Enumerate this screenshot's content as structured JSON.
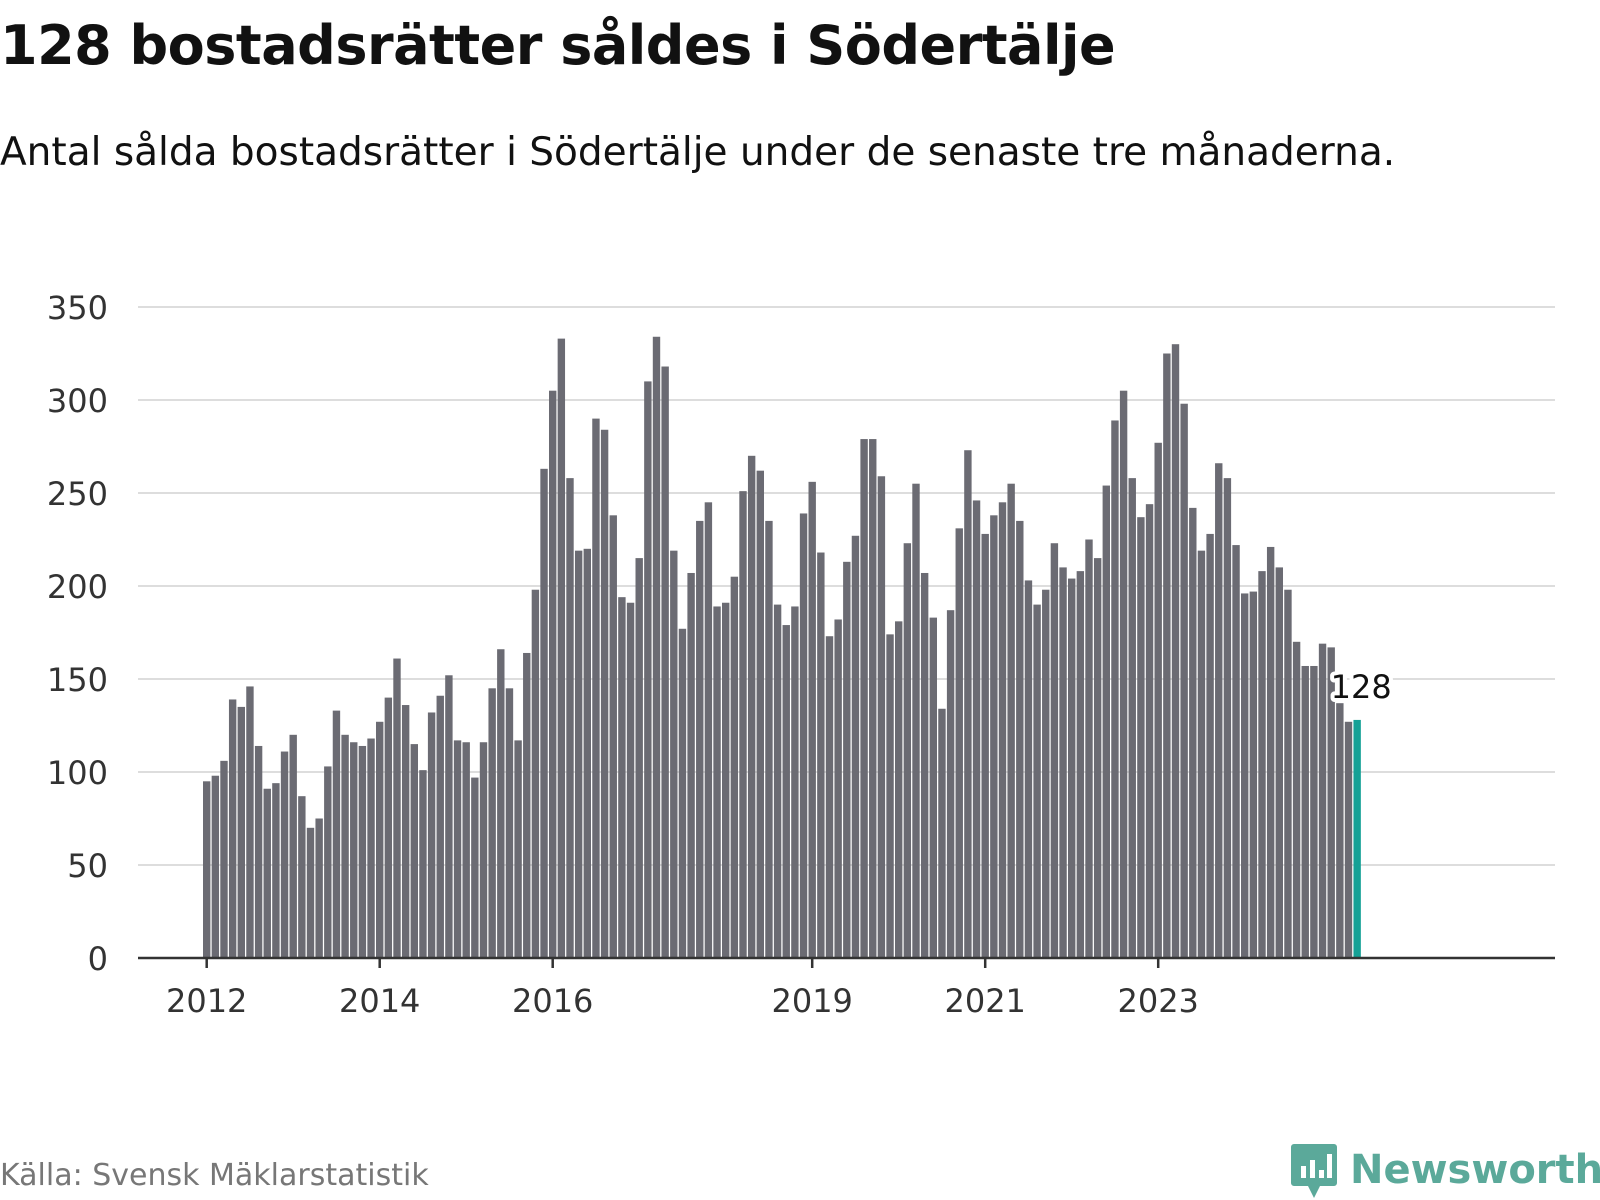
{
  "title": "128 bostadsrätter såldes i Södertälje",
  "subtitle": "Antal sålda bostadsrätter i Södertälje under de senaste tre månaderna.",
  "source": "Källa: Svensk Mäklarstatistik",
  "brand": {
    "name": "Newsworthy",
    "icon": "newsworthy-logo-icon"
  },
  "colors": {
    "bar": "#6b6b73",
    "highlight": "#15a196",
    "grid": "#dddddd",
    "axis": "#333333",
    "brand": "#5ba99a"
  },
  "chart_data": {
    "type": "bar",
    "title": "128 bostadsrätter såldes i Södertälje",
    "subtitle": "Antal sålda bostadsrätter i Södertälje under de senaste tre månaderna.",
    "xlabel": "",
    "ylabel": "",
    "ylim": [
      0,
      350
    ],
    "yticks": [
      0,
      50,
      100,
      150,
      200,
      250,
      300,
      350
    ],
    "xtick_labels": [
      {
        "label": "2012",
        "index": 0
      },
      {
        "label": "2014",
        "index": 20
      },
      {
        "label": "2016",
        "index": 40
      },
      {
        "label": "2019",
        "index": 70
      },
      {
        "label": "2021",
        "index": 90
      },
      {
        "label": "2023",
        "index": 110
      }
    ],
    "grid": true,
    "values": [
      95,
      98,
      106,
      139,
      135,
      146,
      114,
      91,
      94,
      111,
      120,
      87,
      70,
      75,
      103,
      133,
      120,
      116,
      114,
      118,
      127,
      140,
      161,
      136,
      115,
      101,
      132,
      141,
      152,
      117,
      116,
      97,
      116,
      145,
      166,
      145,
      117,
      164,
      198,
      263,
      305,
      333,
      258,
      219,
      220,
      290,
      284,
      238,
      194,
      191,
      215,
      310,
      334,
      318,
      219,
      177,
      207,
      235,
      245,
      189,
      191,
      205,
      251,
      270,
      262,
      235,
      190,
      179,
      189,
      239,
      256,
      218,
      173,
      182,
      213,
      227,
      279,
      279,
      259,
      174,
      181,
      223,
      255,
      207,
      183,
      134,
      187,
      231,
      273,
      246,
      228,
      238,
      245,
      255,
      235,
      203,
      190,
      198,
      223,
      210,
      204,
      208,
      225,
      215,
      254,
      289,
      305,
      258,
      237,
      244,
      277,
      325,
      330,
      298,
      242,
      219,
      228,
      266,
      258,
      222,
      196,
      197,
      208,
      221,
      210,
      198,
      170,
      157,
      157,
      169,
      167,
      137,
      127,
      128
    ],
    "highlight": {
      "index": 133,
      "label": "128"
    }
  }
}
